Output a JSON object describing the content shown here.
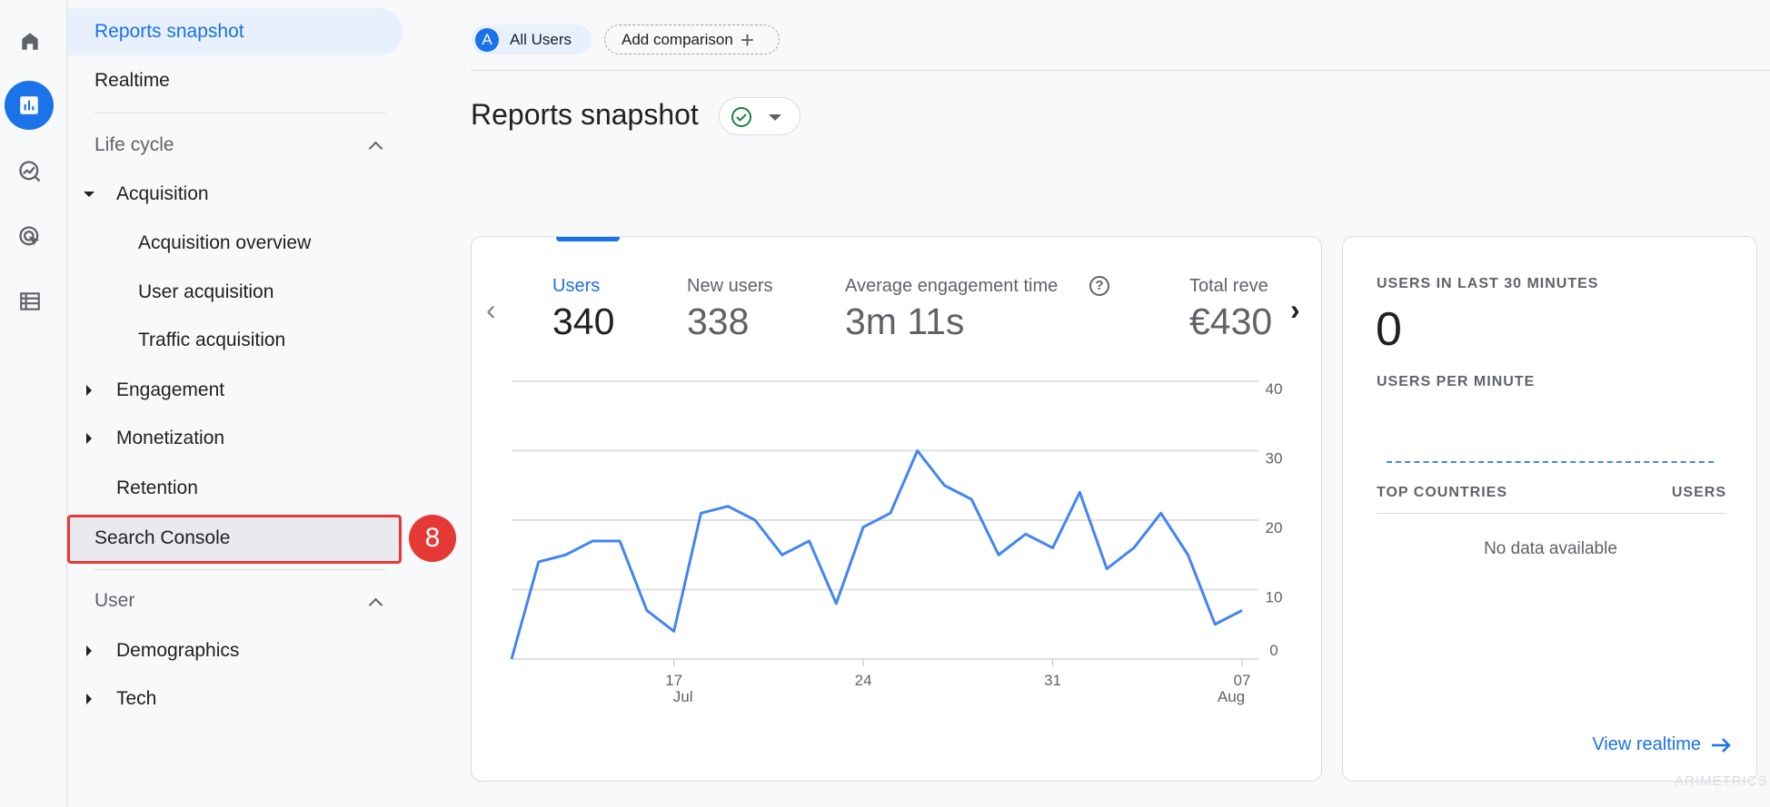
{
  "rail": {
    "items": [
      "home",
      "reports",
      "explore",
      "advertising",
      "configure"
    ]
  },
  "sidebar": {
    "reports_snapshot": "Reports snapshot",
    "realtime": "Realtime",
    "life_cycle": "Life cycle",
    "acquisition": "Acquisition",
    "acquisition_overview": "Acquisition overview",
    "user_acquisition": "User acquisition",
    "traffic_acquisition": "Traffic acquisition",
    "engagement": "Engagement",
    "monetization": "Monetization",
    "retention": "Retention",
    "search_console": "Search Console",
    "user": "User",
    "demographics": "Demographics",
    "tech": "Tech",
    "annotation_badge": "8"
  },
  "header": {
    "segment_letter": "A",
    "segment_label": "All Users",
    "add_comparison": "Add comparison",
    "title": "Reports snapshot"
  },
  "metrics": [
    {
      "label": "Users",
      "value": "340"
    },
    {
      "label": "New users",
      "value": "338"
    },
    {
      "label": "Average engagement time",
      "value": "3m 11s"
    },
    {
      "label": "Total reve",
      "value": "€430"
    }
  ],
  "chart_data": {
    "type": "line",
    "series": [
      {
        "name": "Users",
        "values": [
          0,
          14,
          15,
          17,
          17,
          7,
          4,
          21,
          22,
          20,
          15,
          17,
          8,
          19,
          21,
          30,
          25,
          23,
          15,
          18,
          16,
          24,
          13,
          16,
          21,
          15,
          5,
          7
        ]
      }
    ],
    "x_start": "11 Jul",
    "x_ticks": [
      {
        "index": 6,
        "day": "17",
        "month": "Jul"
      },
      {
        "index": 13,
        "day": "24",
        "month": ""
      },
      {
        "index": 20,
        "day": "31",
        "month": ""
      },
      {
        "index": 27,
        "day": "07",
        "month": "Aug"
      }
    ],
    "y_ticks": [
      "0",
      "10",
      "20",
      "30",
      "40"
    ],
    "ylim": [
      0,
      40
    ],
    "color": "#4285f4"
  },
  "realtime": {
    "users_30_label": "USERS IN LAST 30 MINUTES",
    "users_30_value": "0",
    "per_minute_label": "USERS PER MINUTE",
    "top_countries_label": "TOP COUNTRIES",
    "users_col_label": "USERS",
    "no_data": "No data available",
    "view_realtime": "View realtime"
  },
  "watermark": "ARIMETRICS"
}
